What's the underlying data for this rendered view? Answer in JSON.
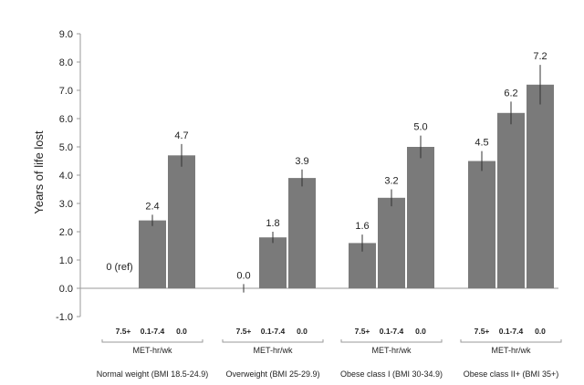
{
  "chart_data": {
    "type": "bar",
    "ylabel": "Years of life lost",
    "ylim": [
      -1.0,
      9.0
    ],
    "yticks": [
      "9.0",
      "8.0",
      "7.0",
      "6.0",
      "5.0",
      "4.0",
      "3.0",
      "2.0",
      "1.0",
      "0.0",
      "-1.0"
    ],
    "categories": [
      "7.5+",
      "0.1-7.4",
      "0.0"
    ],
    "group_axis_label": "MET-hr/wk",
    "groups": [
      {
        "label": "Normal weight (BMI 18.5-24.9)",
        "values": [
          0.0,
          2.4,
          4.7
        ],
        "errors": [
          0.0,
          0.2,
          0.4
        ],
        "value_labels": [
          "0 (ref)",
          "2.4",
          "4.7"
        ]
      },
      {
        "label": "Overweight (BMI 25-29.9)",
        "values": [
          0.0,
          1.8,
          3.9
        ],
        "errors": [
          0.15,
          0.2,
          0.3
        ],
        "value_labels": [
          "0.0",
          "1.8",
          "3.9"
        ]
      },
      {
        "label": "Obese class I (BMI 30-34.9)",
        "values": [
          1.6,
          3.2,
          5.0
        ],
        "errors": [
          0.3,
          0.3,
          0.4
        ],
        "value_labels": [
          "1.6",
          "3.2",
          "5.0"
        ]
      },
      {
        "label": "Obese class II+ (BMI 35+)",
        "values": [
          4.5,
          6.2,
          7.2
        ],
        "errors": [
          0.35,
          0.4,
          0.7
        ],
        "value_labels": [
          "4.5",
          "6.2",
          "7.2"
        ]
      }
    ],
    "grid": false,
    "legend": "none"
  }
}
